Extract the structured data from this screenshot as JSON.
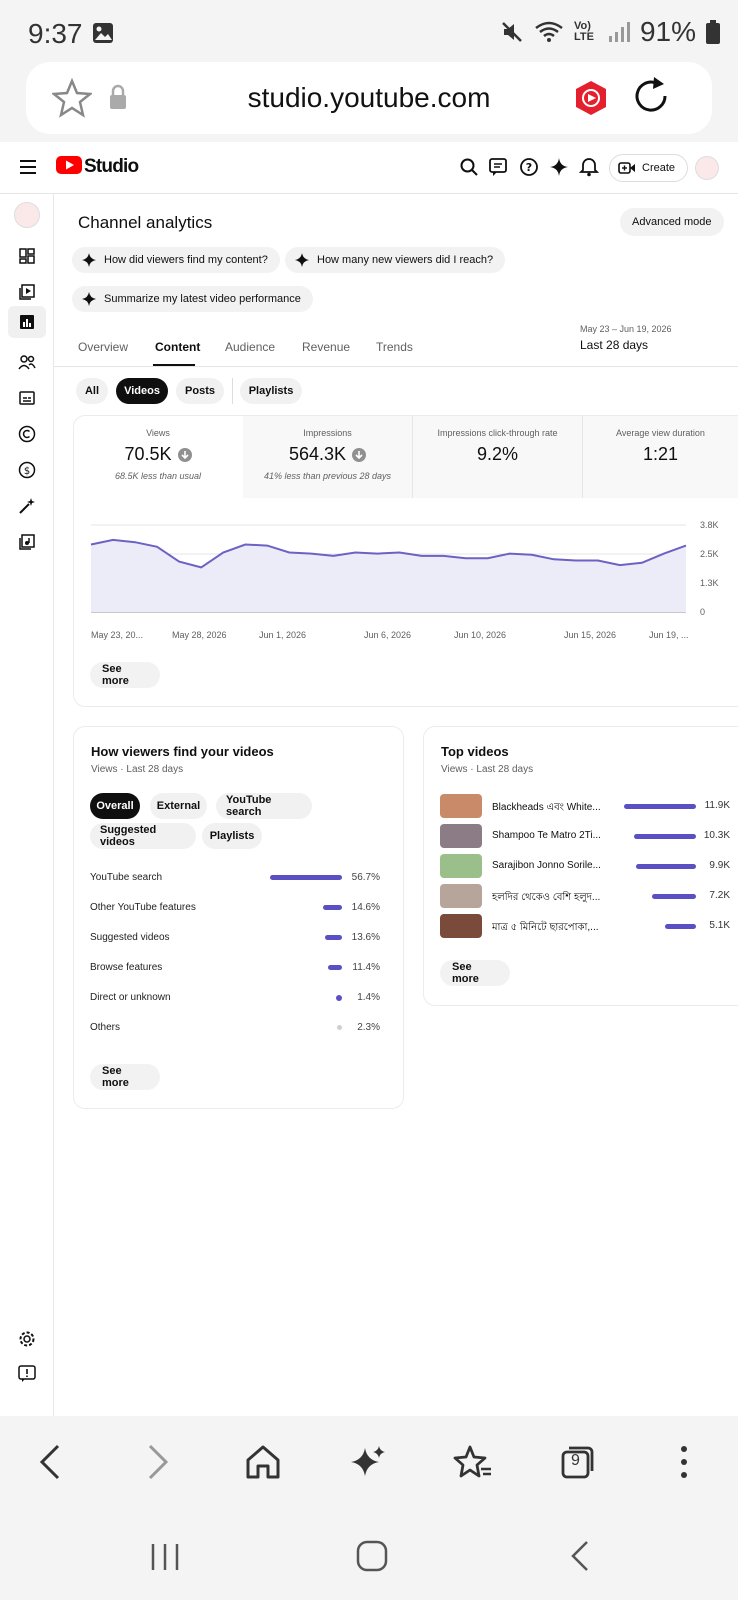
{
  "status_bar": {
    "time": "9:37",
    "battery": "91%",
    "network": "Vo) LTE"
  },
  "browser": {
    "url": "studio.youtube.com",
    "tab_count": "9"
  },
  "appbar": {
    "logo_text": "Studio",
    "create_label": "Create"
  },
  "page": {
    "title": "Channel analytics",
    "advanced_mode": "Advanced mode"
  },
  "suggestions": [
    "How did viewers find my content?",
    "How many new viewers did I reach?",
    "Summarize my latest video performance"
  ],
  "tabs": [
    "Overview",
    "Content",
    "Audience",
    "Revenue",
    "Trends"
  ],
  "selected_tab": "Content",
  "date_range": {
    "range": "May 23 – Jun 19, 2026",
    "label": "Last 28 days"
  },
  "content_chips": [
    "All",
    "Videos",
    "Posts",
    "Playlists"
  ],
  "metrics": [
    {
      "label": "Views",
      "value": "70.5K",
      "sub": "68.5K less than usual"
    },
    {
      "label": "Impressions",
      "value": "564.3K",
      "sub": "41% less than previous 28 days"
    },
    {
      "label": "Impressions click-through rate",
      "value": "9.2%",
      "sub": ""
    },
    {
      "label": "Average view duration",
      "value": "1:21",
      "sub": ""
    }
  ],
  "chart_data": {
    "type": "area",
    "y_ticks": [
      "3.8K",
      "2.5K",
      "1.3K",
      "0"
    ],
    "x_tick_labels": [
      "May 23, 20...",
      "May 28, 2026",
      "Jun 1, 2026",
      "Jun 6, 2026",
      "Jun 10, 2026",
      "Jun 15, 2026",
      "Jun 19, ..."
    ],
    "ylim": [
      0,
      3800
    ],
    "values": [
      2950,
      3150,
      3050,
      2850,
      2200,
      1950,
      2600,
      2950,
      2900,
      2600,
      2550,
      2450,
      2600,
      2550,
      2600,
      2450,
      2450,
      2350,
      2350,
      2550,
      2500,
      2300,
      2250,
      2250,
      2050,
      2150,
      2550,
      2900
    ],
    "color": "#6b62c4",
    "grid": true
  },
  "chart_see_more": "See more",
  "traffic": {
    "title": "How viewers find your videos",
    "subtitle": "Views · Last 28 days",
    "chips": [
      "Overall",
      "External",
      "YouTube search",
      "Suggested videos",
      "Playlists"
    ],
    "rows": [
      {
        "name": "YouTube search",
        "pct": "56.7%",
        "value": 56.7
      },
      {
        "name": "Other YouTube features",
        "pct": "14.6%",
        "value": 14.6
      },
      {
        "name": "Suggested videos",
        "pct": "13.6%",
        "value": 13.6
      },
      {
        "name": "Browse features",
        "pct": "11.4%",
        "value": 11.4
      },
      {
        "name": "Direct or unknown",
        "pct": "1.4%",
        "value": 1.4
      },
      {
        "name": "Others",
        "pct": "2.3%",
        "value": 2.3
      }
    ],
    "see_more": "See more"
  },
  "top_videos": {
    "title": "Top videos",
    "subtitle": "Views · Last 28 days",
    "rows": [
      {
        "title": "Blackheads এবং White...",
        "views": "11.9K",
        "value": 11.9,
        "thumb": "#c98a6a"
      },
      {
        "title": "Shampoo Te Matro 2Ti...",
        "views": "10.3K",
        "value": 10.3,
        "thumb": "#8c7c86"
      },
      {
        "title": "Sarajibon Jonno Sorile...",
        "views": "9.9K",
        "value": 9.9,
        "thumb": "#9bbf8a"
      },
      {
        "title": "হলদির থেকেও বেশি হলুদ...",
        "views": "7.2K",
        "value": 7.2,
        "thumb": "#b7a59c"
      },
      {
        "title": "মাত্র ৫ মিনিটে ছারপোকা,...",
        "views": "5.1K",
        "value": 5.1,
        "thumb": "#7a4a3a"
      }
    ],
    "see_more": "See more"
  }
}
